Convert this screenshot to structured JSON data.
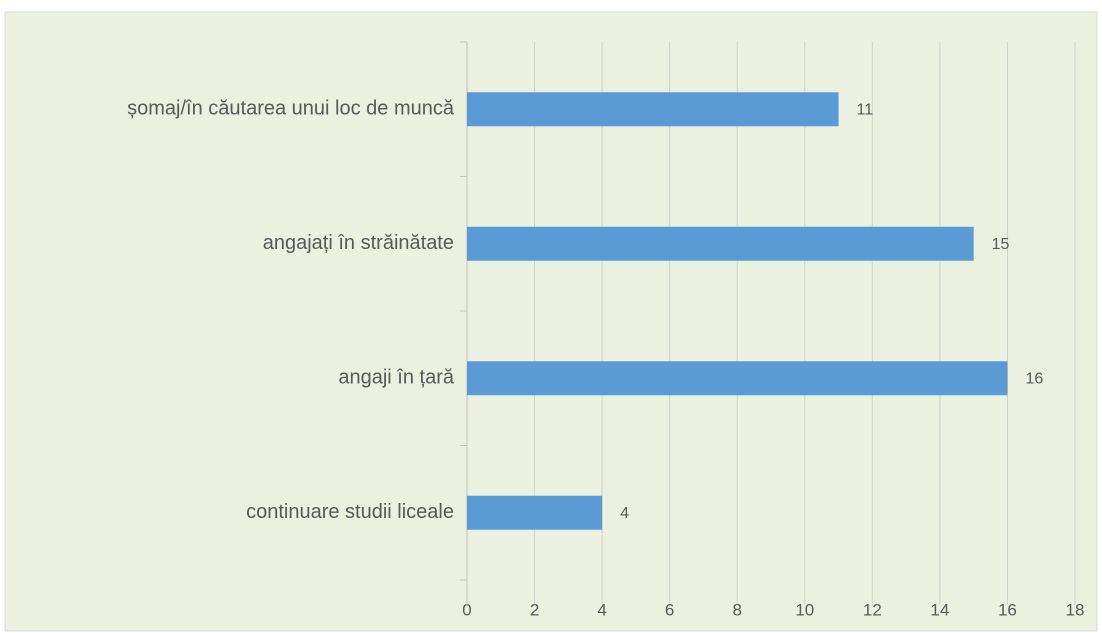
{
  "chart_data": {
    "type": "hbar",
    "categories": [
      "șomaj/în căutarea unui loc de muncă",
      "angajați în străinătate",
      "angaji în țară",
      "continuare studii liceale"
    ],
    "values": [
      11,
      15,
      16,
      4
    ],
    "color": "#5b9bd5",
    "xlim": [
      0,
      18
    ],
    "xticks": [
      0,
      2,
      4,
      6,
      8,
      10,
      12,
      14,
      16,
      18
    ],
    "grid": true
  }
}
